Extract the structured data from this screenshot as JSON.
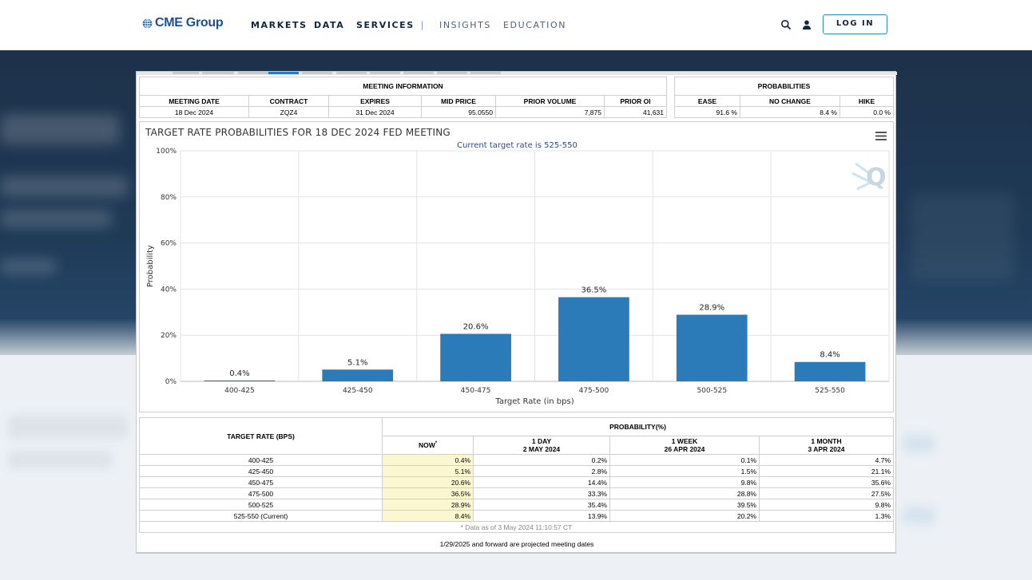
{
  "header": {
    "logo_text": "CME Group",
    "nav": [
      {
        "label": "MARKETS"
      },
      {
        "label": "DATA"
      },
      {
        "label": "SERVICES"
      },
      {
        "label": "INSIGHTS"
      },
      {
        "label": "EDUCATION"
      }
    ],
    "separator": "|",
    "search_icon": "search-icon",
    "user_icon": "user-icon",
    "login_label": "LOG IN",
    "accent": "#2a8ec5"
  },
  "meeting": {
    "section_title": "MEETING INFORMATION",
    "columns": [
      "MEETING DATE",
      "CONTRACT",
      "EXPIRES",
      "MID PRICE",
      "PRIOR VOLUME",
      "PRIOR OI"
    ],
    "row": [
      "18 Dec 2024",
      "ZQZ4",
      "31 Dec 2024",
      "95.0550",
      "7,875",
      "41,631"
    ]
  },
  "probabilities": {
    "section_title": "PROBABILITIES",
    "columns": [
      "EASE",
      "NO CHANGE",
      "HIKE"
    ],
    "row": [
      "91.6 %",
      "8.4 %",
      "0.0 %"
    ]
  },
  "chart": {
    "title": "TARGET RATE PROBABILITIES FOR 18 DEC 2024 FED MEETING",
    "subtitle": "Current target rate is 525-550",
    "menu_icon": "hamburger-menu-icon",
    "watermark": "Q",
    "bar_color": "#2b7bb9"
  },
  "chart_data": {
    "type": "bar",
    "title": "TARGET RATE PROBABILITIES FOR 18 DEC 2024 FED MEETING",
    "subtitle": "Current target rate is 525-550",
    "categories": [
      "400-425",
      "425-450",
      "450-475",
      "475-500",
      "500-525",
      "525-550"
    ],
    "values": [
      0.4,
      5.1,
      20.6,
      36.5,
      28.9,
      8.4
    ],
    "value_labels": [
      "0.4%",
      "5.1%",
      "20.6%",
      "36.5%",
      "28.9%",
      "8.4%"
    ],
    "xlabel": "Target Rate (in bps)",
    "ylabel": "Probability",
    "ylim": [
      0,
      100
    ],
    "yticks": [
      "0%",
      "20%",
      "40%",
      "60%",
      "80%",
      "100%"
    ],
    "grid": true
  },
  "prob_table": {
    "col_label": "TARGET RATE (BPS)",
    "group_label": "PROBABILITY(%)",
    "now_label": "NOW",
    "now_mark": "*",
    "cols": [
      {
        "line1": "1 DAY",
        "line2": "2 MAY 2024"
      },
      {
        "line1": "1 WEEK",
        "line2": "26 APR 2024"
      },
      {
        "line1": "1 MONTH",
        "line2": "3 APR 2024"
      }
    ],
    "rows": [
      {
        "rate": "400-425",
        "now": "0.4%",
        "d1": "0.2%",
        "w1": "0.1%",
        "m1": "4.7%"
      },
      {
        "rate": "425-450",
        "now": "5.1%",
        "d1": "2.8%",
        "w1": "1.5%",
        "m1": "21.1%"
      },
      {
        "rate": "450-475",
        "now": "20.6%",
        "d1": "14.4%",
        "w1": "9.8%",
        "m1": "35.6%"
      },
      {
        "rate": "475-500",
        "now": "36.5%",
        "d1": "33.3%",
        "w1": "28.8%",
        "m1": "27.5%"
      },
      {
        "rate": "500-525",
        "now": "28.9%",
        "d1": "35.4%",
        "w1": "39.5%",
        "m1": "9.8%"
      },
      {
        "rate": "525-550 (Current)",
        "now": "8.4%",
        "d1": "13.9%",
        "w1": "20.2%",
        "m1": "1.3%"
      }
    ],
    "as_of": "* Data as of 3 May 2024 11:10:57 CT"
  },
  "footer_note": "1/29/2025 and forward are projected meeting dates"
}
